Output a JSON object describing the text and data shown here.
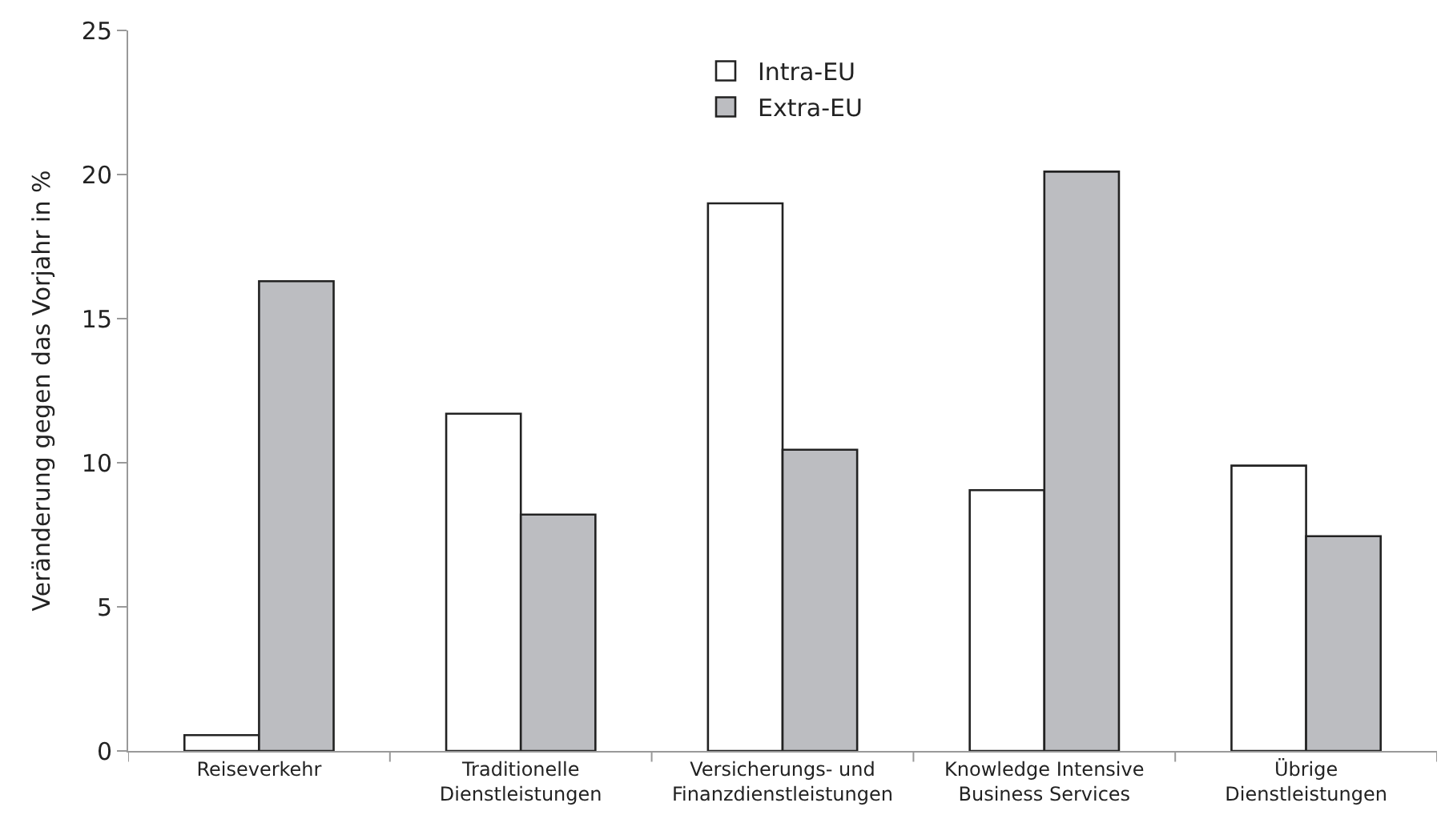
{
  "chart_data": {
    "type": "bar",
    "ylabel": "Veränderung gegen das Vorjahr in %",
    "categories": [
      "Reiseverkehr",
      "Traditionelle\nDienstleistungen",
      "Versicherungs- und\nFinanzdienstleistungen",
      "Knowledge Intensive\nBusiness Services",
      "Übrige\nDienstleistungen"
    ],
    "series": [
      {
        "name": "Intra-EU",
        "color": "#ffffff",
        "values": [
          0.55,
          11.7,
          19.0,
          9.05,
          9.9
        ]
      },
      {
        "name": "Extra-EU",
        "color": "#bcbdc1",
        "values": [
          16.3,
          8.2,
          10.45,
          20.1,
          7.45
        ]
      }
    ],
    "ylim": [
      0,
      25
    ],
    "yticks": [
      0,
      5,
      10,
      15,
      20,
      25
    ],
    "grid": false,
    "legend": "top"
  }
}
